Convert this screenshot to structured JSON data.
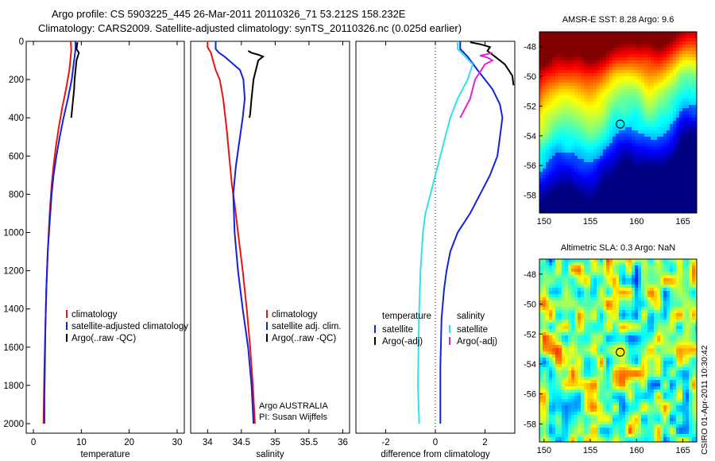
{
  "header": {
    "line1": "Argo profile: CS 5903225_445 26-Mar-2011 20110326_71 53.212S 158.232E",
    "line2": "Climatology: CARS2009. Satellite-adjusted climatology: synTS_20110326.nc (0.025d earlier)"
  },
  "side_text": "CSIRO 01-Apr-2011 10:30:42",
  "colors": {
    "climatology": "#ee1111",
    "satellite": "#1122dd",
    "argo": "#000000",
    "satellite_salinity": "#33e0e8",
    "argo_salinity": "#dd22dd"
  },
  "chart_data": [
    {
      "type": "line",
      "xlabel": "temperature",
      "ylabel": "",
      "xlim": [
        -1.5,
        31.5
      ],
      "ylim": [
        2050,
        0
      ],
      "x_ticks": [
        0,
        10,
        20,
        30
      ],
      "y_ticks": [
        0,
        200,
        400,
        600,
        800,
        1000,
        1200,
        1400,
        1600,
        1800,
        2000
      ],
      "legend": [
        "climatology",
        "satellite-adjusted climatology",
        "Argo(..raw -QC)"
      ],
      "legend_position": "lower-right",
      "series": [
        {
          "name": "climatology",
          "color": "#ee1111",
          "points": [
            [
              7.8,
              0
            ],
            [
              7.9,
              50
            ],
            [
              7.5,
              150
            ],
            [
              6.8,
              250
            ],
            [
              6.0,
              350
            ],
            [
              5.3,
              450
            ],
            [
              4.7,
              550
            ],
            [
              4.2,
              650
            ],
            [
              3.8,
              750
            ],
            [
              3.4,
              900
            ],
            [
              3.0,
              1100
            ],
            [
              2.7,
              1300
            ],
            [
              2.5,
              1500
            ],
            [
              2.3,
              1700
            ],
            [
              2.2,
              1850
            ],
            [
              2.1,
              2000
            ]
          ]
        },
        {
          "name": "satellite-adjusted climatology",
          "color": "#1122dd",
          "points": [
            [
              8.8,
              0
            ],
            [
              8.8,
              40
            ],
            [
              8.5,
              100
            ],
            [
              8.0,
              200
            ],
            [
              7.2,
              300
            ],
            [
              6.3,
              400
            ],
            [
              5.5,
              500
            ],
            [
              4.8,
              600
            ],
            [
              4.2,
              700
            ],
            [
              3.8,
              800
            ],
            [
              3.4,
              950
            ],
            [
              3.0,
              1100
            ],
            [
              2.7,
              1300
            ],
            [
              2.5,
              1500
            ],
            [
              2.4,
              1700
            ],
            [
              2.3,
              1850
            ],
            [
              2.3,
              2000
            ]
          ]
        },
        {
          "name": "Argo(..raw -QC)",
          "color": "#000000",
          "points": [
            [
              9.2,
              5
            ],
            [
              9.0,
              40
            ],
            [
              9.5,
              60
            ],
            [
              9.0,
              100
            ],
            [
              8.8,
              150
            ],
            [
              8.6,
              200
            ],
            [
              8.5,
              250
            ],
            [
              8.3,
              300
            ],
            [
              8.1,
              350
            ],
            [
              7.9,
              400
            ]
          ]
        }
      ]
    },
    {
      "type": "line",
      "xlabel": "salinity",
      "ylabel": "",
      "xlim": [
        33.75,
        36.1
      ],
      "ylim": [
        2050,
        0
      ],
      "x_ticks": [
        34,
        34.5,
        35,
        35.5,
        36
      ],
      "y_ticks": [],
      "legend": [
        "climatology",
        "satellite adj. clim.",
        "Argo(..raw -QC)"
      ],
      "legend_position": "lower-right",
      "annotation": [
        "Argo AUSTRALIA",
        "PI: Susan Wijffels"
      ],
      "series": [
        {
          "name": "climatology",
          "color": "#ee1111",
          "points": [
            [
              34.0,
              0
            ],
            [
              34.0,
              30
            ],
            [
              34.05,
              60
            ],
            [
              34.08,
              100
            ],
            [
              34.12,
              150
            ],
            [
              34.18,
              200
            ],
            [
              34.23,
              300
            ],
            [
              34.28,
              450
            ],
            [
              34.32,
              600
            ],
            [
              34.36,
              750
            ],
            [
              34.4,
              850
            ],
            [
              34.45,
              1000
            ],
            [
              34.52,
              1200
            ],
            [
              34.58,
              1400
            ],
            [
              34.63,
              1600
            ],
            [
              34.67,
              1800
            ],
            [
              34.7,
              2000
            ]
          ]
        },
        {
          "name": "satellite adj. clim.",
          "color": "#1122dd",
          "points": [
            [
              34.12,
              0
            ],
            [
              34.12,
              40
            ],
            [
              34.17,
              60
            ],
            [
              34.25,
              80
            ],
            [
              34.35,
              110
            ],
            [
              34.48,
              150
            ],
            [
              34.53,
              200
            ],
            [
              34.55,
              300
            ],
            [
              34.52,
              400
            ],
            [
              34.48,
              500
            ],
            [
              34.42,
              650
            ],
            [
              34.38,
              800
            ],
            [
              34.4,
              1000
            ],
            [
              34.45,
              1200
            ],
            [
              34.52,
              1400
            ],
            [
              34.6,
              1600
            ],
            [
              34.65,
              1800
            ],
            [
              34.68,
              2000
            ]
          ]
        },
        {
          "name": "Argo(..raw -QC)",
          "color": "#000000",
          "points": [
            [
              34.6,
              50
            ],
            [
              34.65,
              60
            ],
            [
              34.75,
              70
            ],
            [
              34.82,
              80
            ],
            [
              34.75,
              100
            ],
            [
              34.68,
              200
            ],
            [
              34.65,
              300
            ],
            [
              34.63,
              380
            ],
            [
              34.62,
              400
            ]
          ]
        }
      ]
    },
    {
      "type": "line",
      "xlabel": "difference from climatology",
      "ylabel": "",
      "xlim": [
        -3.2,
        3.2
      ],
      "ylim": [
        2050,
        0
      ],
      "x_ticks": [
        -2,
        0,
        2
      ],
      "y_ticks": [],
      "zero_line": true,
      "legend_groups": [
        {
          "heading": "temperature",
          "items": [
            "satellite",
            "Argo(-adj)"
          ]
        },
        {
          "heading": "salinity",
          "items": [
            "satellite",
            "Argo(-adj)"
          ]
        }
      ],
      "legend_position": "lower-center",
      "series": [
        {
          "name": "temperature satellite",
          "color": "#1122dd",
          "points": [
            [
              1.0,
              0
            ],
            [
              1.0,
              40
            ],
            [
              1.3,
              80
            ],
            [
              1.7,
              150
            ],
            [
              2.3,
              250
            ],
            [
              2.6,
              330
            ],
            [
              2.7,
              400
            ],
            [
              2.6,
              500
            ],
            [
              2.5,
              600
            ],
            [
              2.2,
              700
            ],
            [
              1.8,
              800
            ],
            [
              1.4,
              900
            ],
            [
              0.9,
              1000
            ],
            [
              0.6,
              1100
            ],
            [
              0.45,
              1200
            ],
            [
              0.35,
              1300
            ],
            [
              0.25,
              1450
            ],
            [
              0.2,
              1700
            ],
            [
              0.2,
              2000
            ]
          ]
        },
        {
          "name": "temperature Argo(-adj)",
          "color": "#000000",
          "points": [
            [
              1.4,
              5
            ],
            [
              1.8,
              15
            ],
            [
              2.2,
              30
            ],
            [
              2.1,
              50
            ],
            [
              2.4,
              80
            ],
            [
              2.8,
              120
            ],
            [
              3.1,
              180
            ],
            [
              3.15,
              230
            ]
          ]
        },
        {
          "name": "salinity satellite",
          "color": "#33e0e8",
          "points": [
            [
              0.9,
              0
            ],
            [
              0.9,
              40
            ],
            [
              1.2,
              80
            ],
            [
              1.5,
              120
            ],
            [
              1.3,
              200
            ],
            [
              0.9,
              300
            ],
            [
              0.6,
              400
            ],
            [
              0.4,
              500
            ],
            [
              0.2,
              600
            ],
            [
              0.0,
              700
            ],
            [
              -0.2,
              800
            ],
            [
              -0.4,
              900
            ],
            [
              -0.5,
              1000
            ],
            [
              -0.6,
              1200
            ],
            [
              -0.65,
              1400
            ],
            [
              -0.68,
              1600
            ],
            [
              -0.7,
              1800
            ],
            [
              -0.65,
              2000
            ]
          ]
        },
        {
          "name": "salinity Argo(-adj)",
          "color": "#dd22dd",
          "points": [
            [
              2.3,
              60
            ],
            [
              2.0,
              70
            ],
            [
              1.8,
              75
            ],
            [
              2.1,
              85
            ],
            [
              2.3,
              100
            ],
            [
              2.0,
              120
            ],
            [
              1.6,
              200
            ],
            [
              1.4,
              300
            ],
            [
              1.0,
              400
            ]
          ]
        }
      ]
    },
    {
      "type": "heatmap",
      "title": "AMSR-E SST: 8.28 Argo: 9.6",
      "xlim": [
        149.5,
        166.5
      ],
      "ylim": [
        -59.2,
        -47.0
      ],
      "x_ticks": [
        150,
        155,
        160,
        165
      ],
      "y_ticks": [
        -48,
        -50,
        -52,
        -54,
        -56,
        -58
      ],
      "marker": {
        "lon": 158.232,
        "lat": -53.212
      }
    },
    {
      "type": "heatmap",
      "title": "Altimetric SLA: 0.3  Argo: NaN",
      "xlim": [
        149.5,
        166.5
      ],
      "ylim": [
        -59.2,
        -47.0
      ],
      "x_ticks": [
        150,
        155,
        160,
        165
      ],
      "y_ticks": [
        -48,
        -50,
        -52,
        -54,
        -56,
        -58
      ],
      "marker": {
        "lon": 158.232,
        "lat": -53.212
      }
    }
  ]
}
